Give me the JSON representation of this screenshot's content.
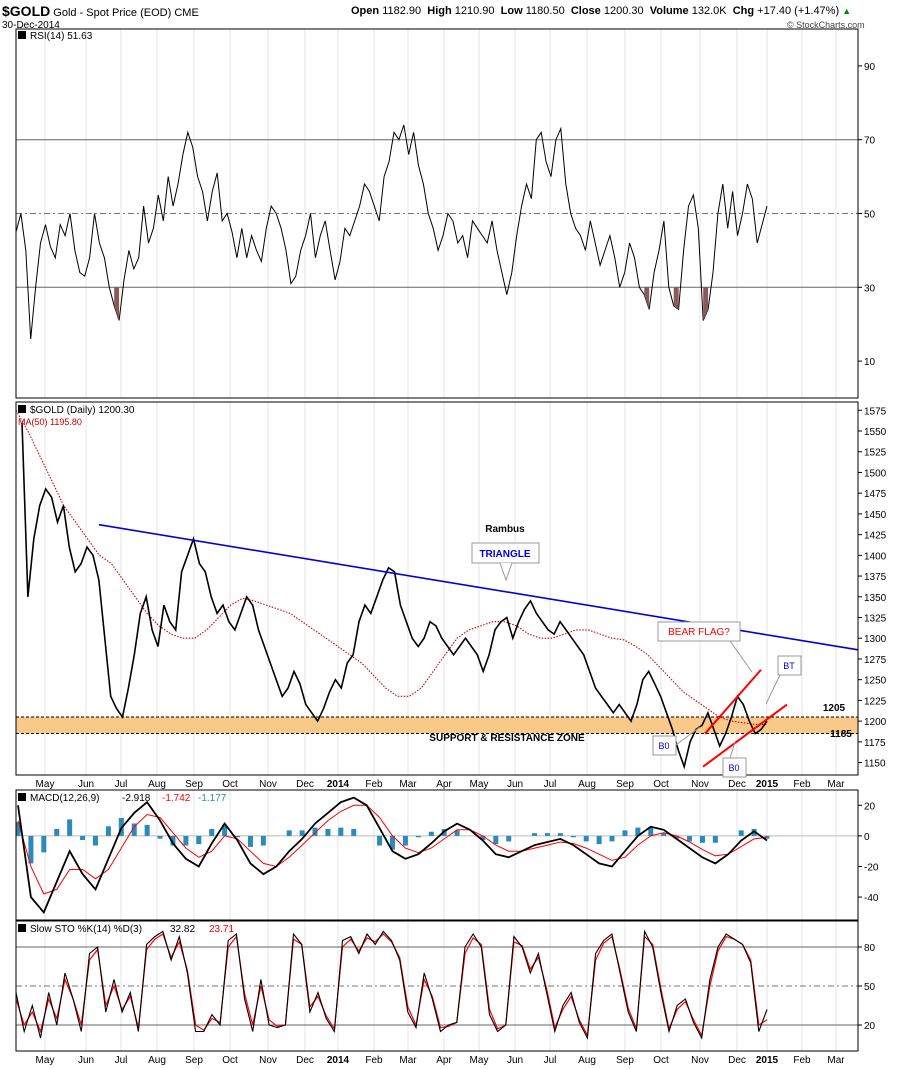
{
  "header": {
    "symbol": "$GOLD",
    "name": "Gold - Spot Price (EOD)",
    "exchange": "CME",
    "date": "30-Dec-2014",
    "open_label": "Open",
    "open": "1182.90",
    "high_label": "High",
    "high": "1210.90",
    "low_label": "Low",
    "low": "1180.50",
    "close_label": "Close",
    "close": "1200.30",
    "volume_label": "Volume",
    "volume": "132.0K",
    "chg_label": "Chg",
    "chg": "+17.40 (+1.47%)",
    "chg_arrow": "▲",
    "watermark": "© StockCharts.com"
  },
  "time_axis": [
    "May",
    "Jun",
    "Jul",
    "Aug",
    "Sep",
    "Oct",
    "Nov",
    "Dec",
    "2014",
    "Feb",
    "Mar",
    "Apr",
    "May",
    "Jun",
    "Jul",
    "Aug",
    "Sep",
    "Oct",
    "Nov",
    "Dec",
    "2015",
    "Feb",
    "Mar"
  ],
  "colors": {
    "price": "#000000",
    "ma": "#cc0000",
    "triangle": "#0000dd",
    "zone": "#f9c98a",
    "flag": "#ff0000",
    "rsi_fill": "#8a5a5a",
    "macd_hist": "#2a8ab8",
    "signal": "#ff0000",
    "grid": "#888888"
  },
  "chart_data": [
    {
      "type": "line",
      "panel": "rsi",
      "legend": "RSI(14) 51.63",
      "ylim": [
        0,
        100
      ],
      "yticks": [
        10,
        30,
        50,
        70,
        90
      ],
      "reference_lines": [
        30,
        50,
        70
      ],
      "series": [
        {
          "name": "RSI(14)",
          "values": [
            45,
            50,
            40,
            16,
            30,
            42,
            47,
            41,
            38,
            47,
            44,
            50,
            40,
            34,
            33,
            38,
            50,
            42,
            38,
            30,
            25,
            21,
            32,
            40,
            35,
            38,
            52,
            42,
            46,
            55,
            48,
            60,
            52,
            58,
            66,
            72,
            68,
            60,
            56,
            48,
            56,
            61,
            48,
            50,
            45,
            38,
            46,
            38,
            44,
            40,
            37,
            46,
            52,
            50,
            46,
            40,
            31,
            33,
            40,
            44,
            50,
            38,
            44,
            48,
            40,
            32,
            37,
            46,
            44,
            48,
            52,
            58,
            56,
            52,
            48,
            60,
            64,
            72,
            70,
            74,
            66,
            72,
            63,
            58,
            50,
            46,
            40,
            44,
            50,
            48,
            42,
            44,
            38,
            48,
            46,
            44,
            42,
            48,
            40,
            34,
            28,
            34,
            44,
            52,
            58,
            54,
            70,
            72,
            64,
            60,
            70,
            73,
            58,
            50,
            46,
            44,
            40,
            48,
            42,
            36,
            40,
            44,
            38,
            30,
            34,
            42,
            38,
            30,
            28,
            24,
            34,
            40,
            48,
            30,
            25,
            24,
            40,
            52,
            55,
            46,
            21,
            24,
            34,
            50,
            58,
            46,
            56,
            44,
            50,
            58,
            54,
            42,
            47,
            52
          ]
        }
      ],
      "annotations": [
        {
          "text": "filled below 30 (oversold)",
          "region": "below-30"
        }
      ]
    },
    {
      "type": "line",
      "panel": "price",
      "legend": "$GOLD (Daily) 1200.30",
      "ma_legend": "MA(50) 1195.80",
      "ylim": [
        1135,
        1585
      ],
      "yticks": [
        1150,
        1175,
        1200,
        1225,
        1250,
        1275,
        1300,
        1325,
        1350,
        1375,
        1400,
        1425,
        1450,
        1475,
        1500,
        1525,
        1550,
        1575
      ],
      "series": [
        {
          "name": "$GOLD (Daily)",
          "values": [
            1560,
            1350,
            1420,
            1460,
            1480,
            1470,
            1440,
            1460,
            1410,
            1380,
            1390,
            1410,
            1400,
            1370,
            1300,
            1230,
            1215,
            1205,
            1240,
            1280,
            1330,
            1350,
            1310,
            1290,
            1340,
            1320,
            1310,
            1380,
            1400,
            1420,
            1390,
            1380,
            1350,
            1330,
            1340,
            1320,
            1310,
            1330,
            1350,
            1340,
            1310,
            1290,
            1270,
            1250,
            1230,
            1240,
            1260,
            1245,
            1220,
            1210,
            1200,
            1215,
            1235,
            1250,
            1240,
            1270,
            1280,
            1320,
            1340,
            1330,
            1350,
            1370,
            1385,
            1380,
            1340,
            1320,
            1300,
            1290,
            1300,
            1320,
            1315,
            1300,
            1290,
            1280,
            1290,
            1300,
            1290,
            1280,
            1260,
            1280,
            1310,
            1320,
            1325,
            1300,
            1320,
            1335,
            1345,
            1330,
            1320,
            1310,
            1305,
            1320,
            1310,
            1300,
            1290,
            1280,
            1260,
            1240,
            1230,
            1220,
            1210,
            1220,
            1210,
            1200,
            1220,
            1250,
            1260,
            1245,
            1230,
            1210,
            1190,
            1165,
            1145,
            1175,
            1190,
            1195,
            1210,
            1190,
            1170,
            1185,
            1205,
            1230,
            1220,
            1200,
            1185,
            1190,
            1200
          ]
        },
        {
          "name": "MA(50)",
          "values": [
            1575,
            1550,
            1520,
            1490,
            1460,
            1440,
            1420,
            1400,
            1390,
            1370,
            1350,
            1330,
            1315,
            1305,
            1300,
            1300,
            1310,
            1325,
            1340,
            1348,
            1345,
            1340,
            1335,
            1330,
            1320,
            1310,
            1300,
            1290,
            1280,
            1270,
            1255,
            1240,
            1230,
            1230,
            1240,
            1260,
            1280,
            1300,
            1310,
            1315,
            1320,
            1320,
            1315,
            1305,
            1300,
            1300,
            1305,
            1310,
            1310,
            1305,
            1300,
            1298,
            1290,
            1280,
            1265,
            1250,
            1235,
            1225,
            1215,
            1205,
            1200,
            1198,
            1196,
            1196
          ]
        }
      ],
      "lines": [
        {
          "label": "TRIANGLE",
          "kind": "trendline",
          "from": [
            "Jul 2013",
            1437
          ],
          "to": [
            "Mar 2015",
            1286
          ]
        },
        {
          "label": "BEAR FLAG?",
          "kind": "channel-upper",
          "from": [
            "Nov 2014",
            1185
          ],
          "to": [
            "Dec 2014",
            1262
          ]
        },
        {
          "label": "BEAR FLAG?",
          "kind": "channel-lower",
          "from": [
            "Nov 2014",
            1145
          ],
          "to": [
            "Jan 2015",
            1220
          ]
        }
      ],
      "zone": {
        "label": "SUPPORT & RESISTANCE ZONE",
        "from": 1185,
        "to": 1205
      },
      "annotations": [
        {
          "text": "Rambus"
        },
        {
          "text": "TRIANGLE"
        },
        {
          "text": "BEAR FLAG?"
        },
        {
          "text": "BT"
        },
        {
          "text": "B0"
        },
        {
          "text": "B0"
        },
        {
          "text": "1205"
        },
        {
          "text": "1185"
        },
        {
          "text": "SUPPORT & RESISTANCE ZONE"
        }
      ]
    },
    {
      "type": "line",
      "panel": "macd",
      "legend_label": "MACD(12,26,9)",
      "legend_values": [
        "-2.918",
        "-1.742",
        "-1.177"
      ],
      "ylim": [
        -55,
        30
      ],
      "yticks": [
        -40,
        -20,
        0,
        20
      ],
      "series": [
        {
          "name": "MACD",
          "values": [
            20,
            -40,
            -50,
            -30,
            -10,
            -25,
            -35,
            -15,
            5,
            15,
            22,
            10,
            -5,
            -15,
            -20,
            -5,
            8,
            -3,
            -18,
            -25,
            -20,
            -10,
            -2,
            8,
            15,
            22,
            25,
            20,
            5,
            -10,
            -15,
            -12,
            -5,
            3,
            8,
            4,
            -3,
            -12,
            -14,
            -10,
            -6,
            -4,
            -2,
            -6,
            -12,
            -18,
            -20,
            -10,
            0,
            6,
            4,
            -2,
            -8,
            -14,
            -18,
            -12,
            -3,
            3,
            -3
          ]
        },
        {
          "name": "Signal",
          "values": [
            10,
            -20,
            -38,
            -35,
            -22,
            -22,
            -28,
            -22,
            -8,
            6,
            14,
            12,
            2,
            -8,
            -14,
            -10,
            0,
            -2,
            -10,
            -18,
            -20,
            -14,
            -6,
            2,
            10,
            16,
            20,
            20,
            12,
            0,
            -8,
            -11,
            -8,
            -2,
            4,
            4,
            0,
            -6,
            -10,
            -10,
            -8,
            -6,
            -4,
            -5,
            -8,
            -12,
            -16,
            -14,
            -6,
            0,
            2,
            0,
            -4,
            -9,
            -13,
            -12,
            -7,
            -2,
            -1
          ]
        }
      ]
    },
    {
      "type": "line",
      "panel": "stochastic",
      "legend_label": "Slow STO %K(14) %D(3)",
      "legend_values": [
        "32.82",
        "23.71"
      ],
      "ylim": [
        0,
        100
      ],
      "yticks": [
        20,
        50,
        80
      ],
      "reference_lines": [
        20,
        50,
        80
      ],
      "series": [
        {
          "name": "%K",
          "values": [
            45,
            15,
            35,
            10,
            45,
            20,
            60,
            40,
            15,
            75,
            80,
            30,
            55,
            30,
            45,
            15,
            82,
            88,
            92,
            70,
            88,
            60,
            15,
            15,
            28,
            20,
            85,
            90,
            40,
            15,
            55,
            20,
            18,
            20,
            90,
            82,
            30,
            45,
            25,
            15,
            85,
            88,
            75,
            90,
            82,
            92,
            85,
            70,
            30,
            18,
            60,
            40,
            15,
            20,
            22,
            80,
            90,
            80,
            28,
            15,
            20,
            88,
            80,
            60,
            75,
            45,
            15,
            35,
            45,
            22,
            10,
            75,
            85,
            90,
            60,
            30,
            15,
            92,
            80,
            45,
            15,
            35,
            40,
            22,
            10,
            55,
            80,
            90,
            86,
            82,
            68,
            15,
            32
          ]
        },
        {
          "name": "%D",
          "values": [
            40,
            20,
            30,
            15,
            40,
            25,
            55,
            40,
            20,
            70,
            78,
            35,
            50,
            32,
            42,
            18,
            78,
            86,
            90,
            72,
            84,
            62,
            20,
            16,
            25,
            22,
            80,
            88,
            44,
            20,
            50,
            24,
            19,
            20,
            86,
            82,
            34,
            42,
            27,
            17,
            80,
            86,
            77,
            87,
            84,
            90,
            84,
            72,
            34,
            20,
            55,
            42,
            18,
            19,
            22,
            75,
            87,
            82,
            32,
            17,
            20,
            84,
            81,
            63,
            72,
            48,
            18,
            32,
            42,
            24,
            12,
            70,
            83,
            88,
            62,
            33,
            17,
            88,
            82,
            48,
            17,
            32,
            38,
            24,
            12,
            50,
            77,
            88,
            86,
            82,
            70,
            20,
            24
          ]
        }
      ]
    }
  ]
}
